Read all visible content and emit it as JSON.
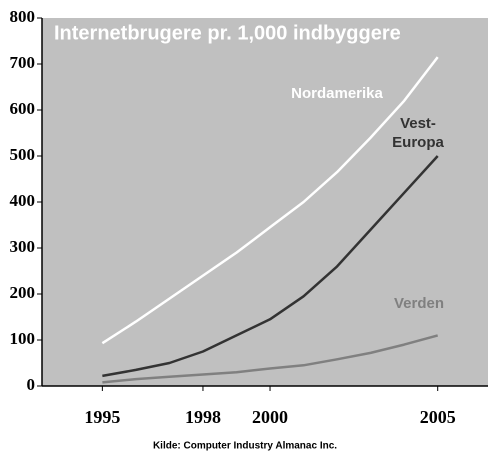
{
  "chart_data": {
    "type": "line",
    "title": "Internetbrugere pr. 1,000 indbyggere",
    "source": "Kilde: Computer Industry Almanac Inc.",
    "x": [
      1995,
      1996,
      1997,
      1998,
      1999,
      2000,
      2001,
      2002,
      2003,
      2004,
      2005
    ],
    "series": [
      {
        "name": "Nordamerika",
        "color": "#ffffff",
        "values": [
          93,
          140,
          190,
          240,
          290,
          345,
          400,
          465,
          540,
          620,
          715
        ]
      },
      {
        "name": "Vest-\nEuropa",
        "color": "#333333",
        "values": [
          22,
          35,
          50,
          75,
          110,
          145,
          195,
          260,
          340,
          420,
          500
        ]
      },
      {
        "name": "Verden",
        "color": "#808080",
        "values": [
          8,
          15,
          20,
          25,
          30,
          38,
          45,
          58,
          72,
          90,
          110
        ]
      }
    ],
    "xlim": [
      1993.2,
      2006.5
    ],
    "xticks": [
      1995,
      1998,
      2000,
      2005
    ],
    "ylim": [
      0,
      800
    ],
    "yticks": [
      0,
      100,
      200,
      300,
      400,
      500,
      600,
      700,
      800
    ],
    "background": "#c0c0c0"
  }
}
